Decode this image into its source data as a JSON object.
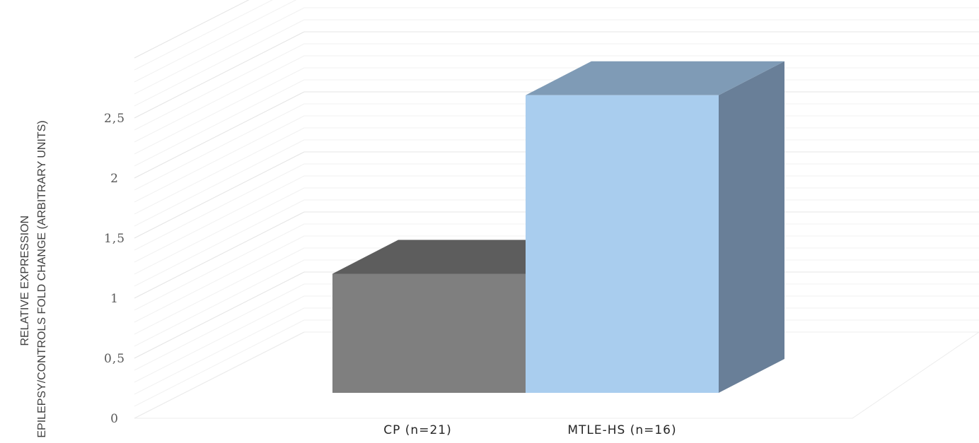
{
  "chart_data": {
    "type": "bar",
    "style": "3d-column",
    "categories": [
      "CP (n=21)",
      "MTLE-HS (n=16)"
    ],
    "values": [
      1.0,
      2.5
    ],
    "colors": [
      "#7f7f7f",
      "#a9cdee"
    ],
    "ylabel_lines": [
      "RELATIVE EXPRESSION",
      "EPILEPSY/CONTROLS FOLD CHANGE (ARBITRARY UNITS)"
    ],
    "yticks": [
      {
        "value": 0,
        "label": "0"
      },
      {
        "value": 0.5,
        "label": "0,5"
      },
      {
        "value": 1,
        "label": "1"
      },
      {
        "value": 1.5,
        "label": "1,5"
      },
      {
        "value": 2,
        "label": "2"
      },
      {
        "value": 2.5,
        "label": "2,5"
      }
    ],
    "ylim": [
      0,
      3
    ],
    "grid": true,
    "legend": "none"
  }
}
